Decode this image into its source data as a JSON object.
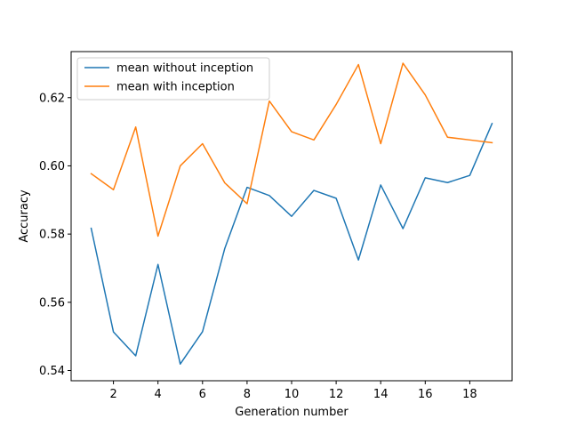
{
  "chart_data": {
    "type": "line",
    "title": "",
    "xlabel": "Generation number",
    "ylabel": "Accuracy",
    "x": [
      1,
      2,
      3,
      4,
      5,
      6,
      7,
      8,
      9,
      10,
      11,
      12,
      13,
      14,
      15,
      16,
      17,
      18,
      19
    ],
    "xlim": [
      0.1,
      19.9
    ],
    "ylim": [
      0.537,
      0.6335
    ],
    "xticks": [
      2,
      4,
      6,
      8,
      10,
      12,
      14,
      16,
      18
    ],
    "xtick_labels": [
      "2",
      "4",
      "6",
      "8",
      "10",
      "12",
      "14",
      "16",
      "18"
    ],
    "yticks": [
      0.54,
      0.56,
      0.58,
      0.6,
      0.62
    ],
    "ytick_labels": [
      "0.54",
      "0.56",
      "0.58",
      "0.60",
      "0.62"
    ],
    "grid": false,
    "legend_position": "upper-left",
    "series": [
      {
        "name": "mean without inception",
        "color": "#1f77b4",
        "values": [
          0.5817,
          0.5513,
          0.5443,
          0.5711,
          0.5419,
          0.5514,
          0.5758,
          0.5937,
          0.5913,
          0.5852,
          0.5928,
          0.5905,
          0.5724,
          0.5944,
          0.5816,
          0.5965,
          0.5951,
          0.5972,
          0.6124
        ]
      },
      {
        "name": "mean with inception",
        "color": "#ff7f0e",
        "values": [
          0.5977,
          0.593,
          0.6114,
          0.5794,
          0.6,
          0.6065,
          0.595,
          0.5889,
          0.619,
          0.61,
          0.6076,
          0.618,
          0.6297,
          0.6065,
          0.6301,
          0.6208,
          0.6084,
          0.6076,
          0.6068
        ]
      }
    ]
  }
}
